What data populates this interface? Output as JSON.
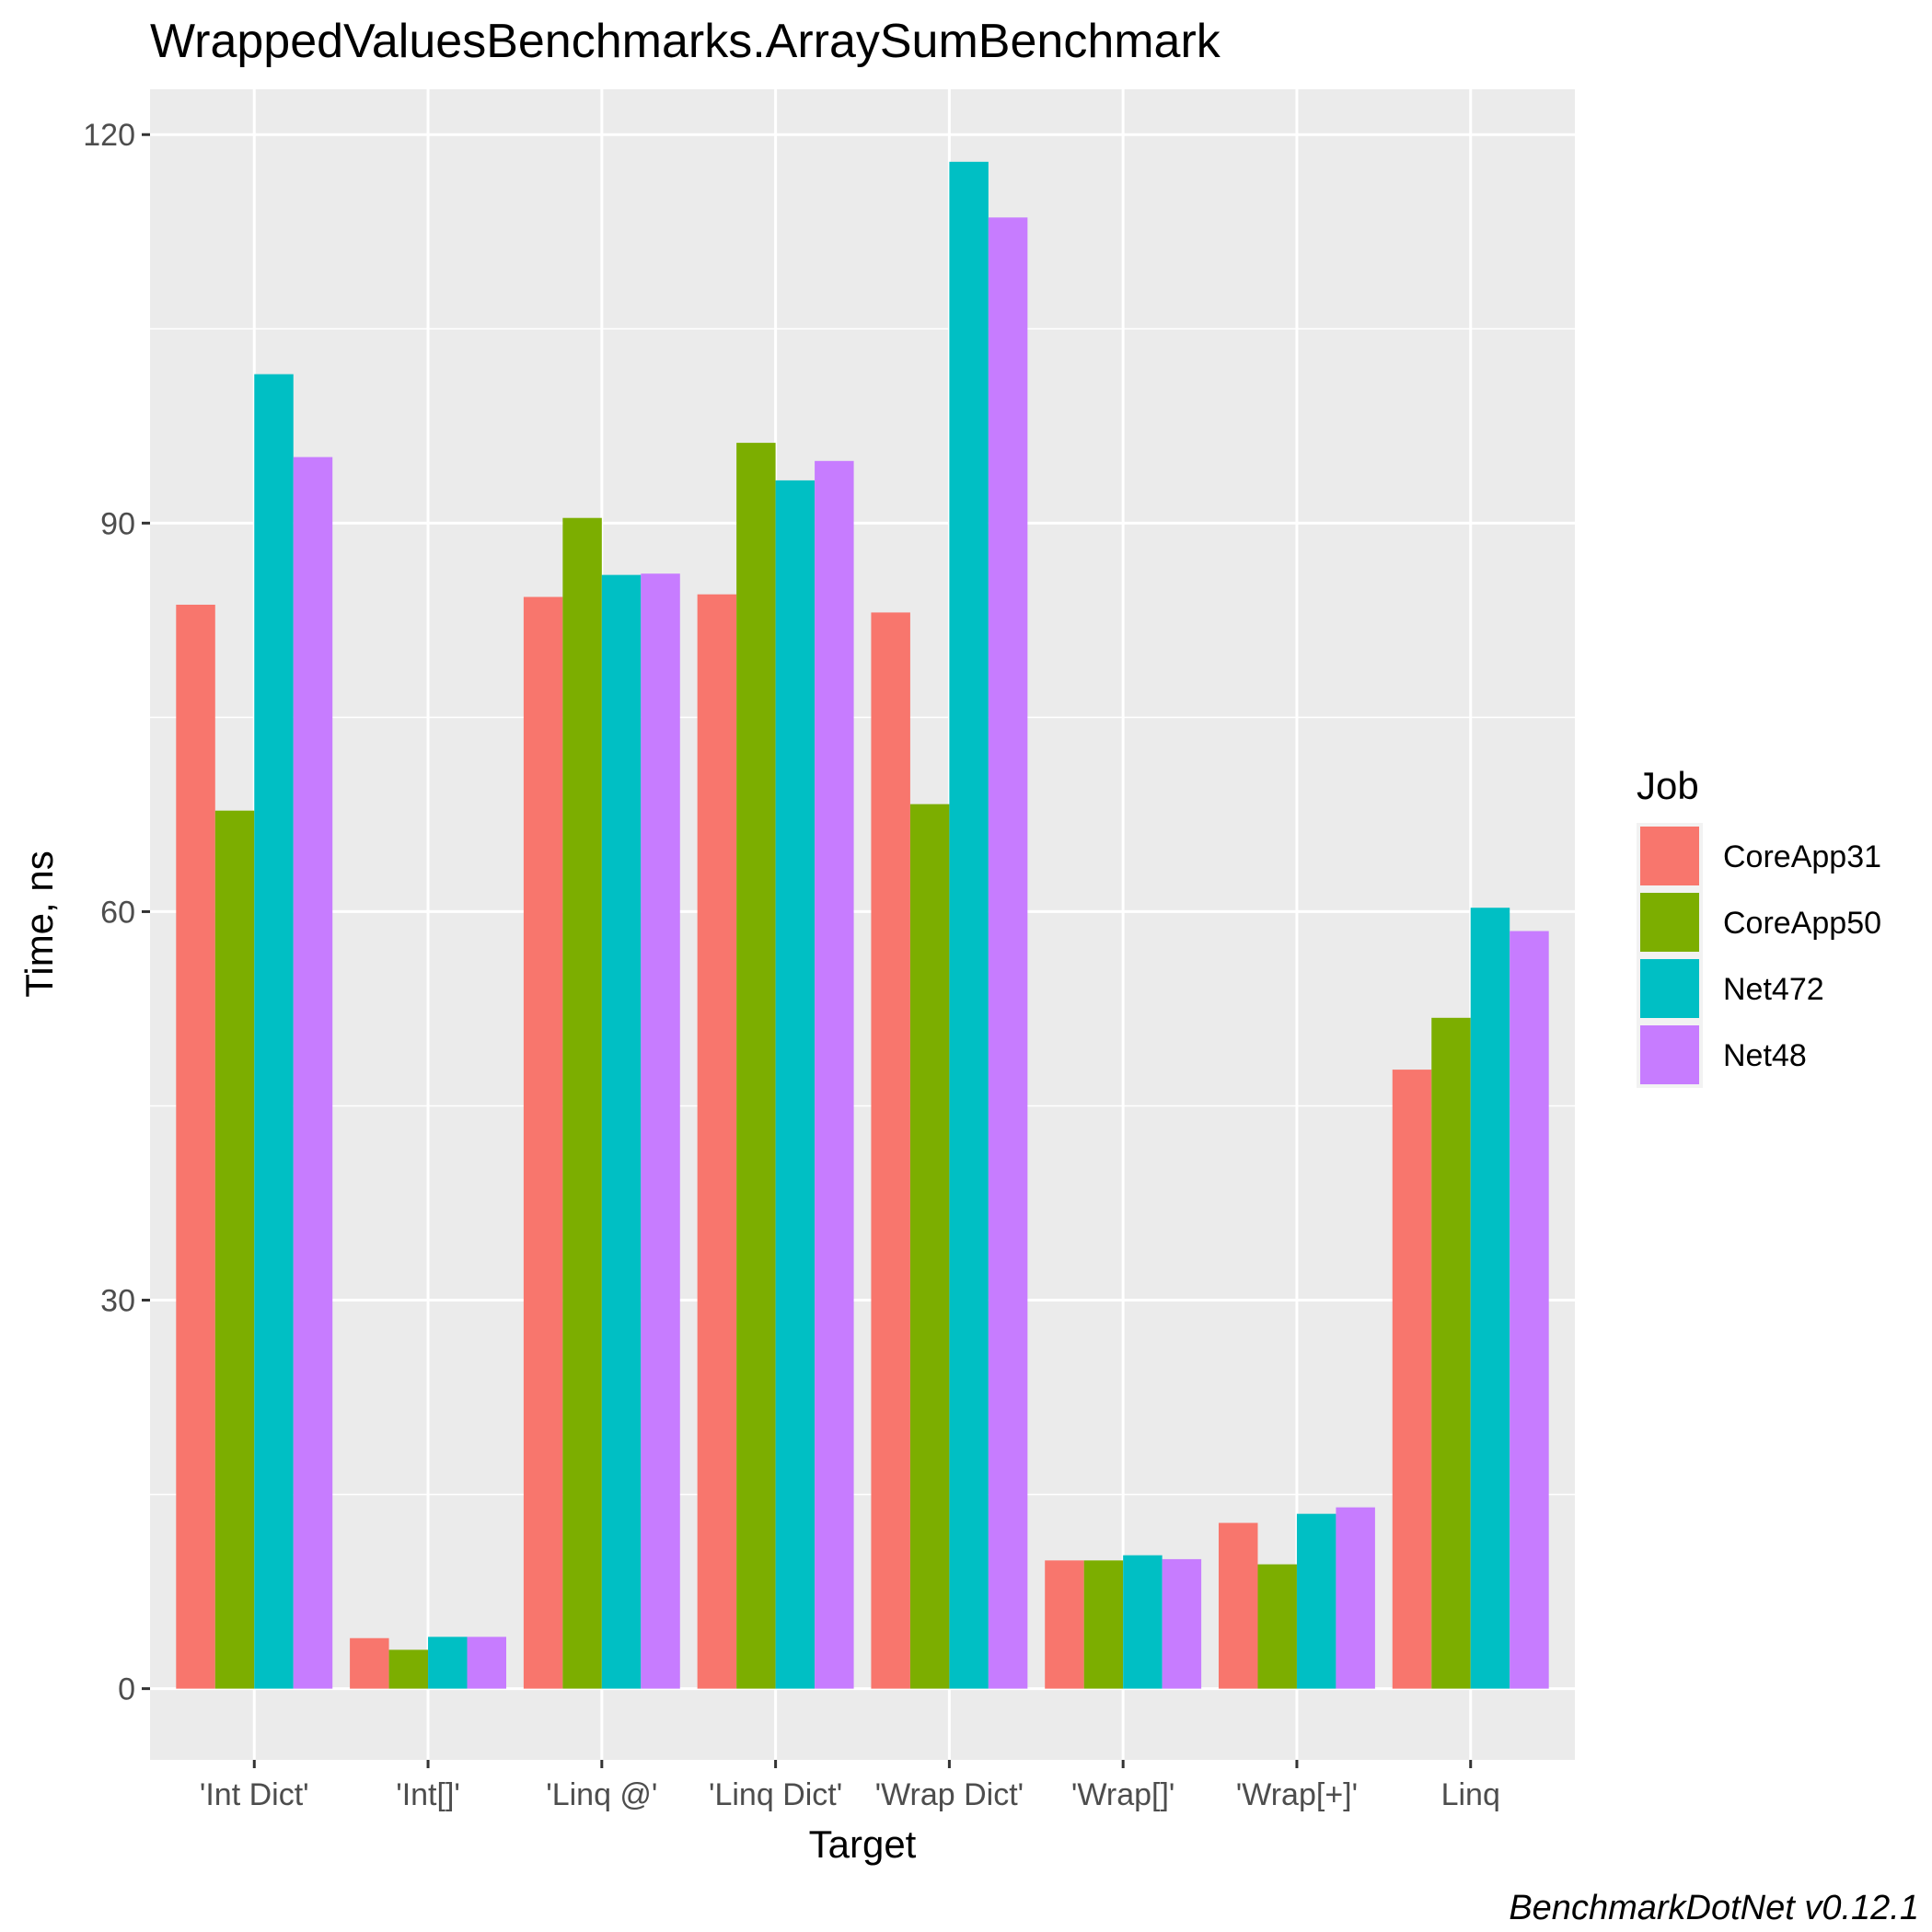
{
  "chart_data": {
    "type": "bar",
    "title": "WrappedValuesBenchmarks.ArraySumBenchmark",
    "xlabel": "Target",
    "ylabel": "Time, ns",
    "caption": "BenchmarkDotNet v0.12.1",
    "categories": [
      "'Int Dict'",
      "'Int[]'",
      "'Linq @'",
      "'Linq Dict'",
      "'Wrap Dict'",
      "'Wrap[]'",
      "'Wrap[+]'",
      "Linq"
    ],
    "yticks": [
      0,
      30,
      60,
      90,
      120
    ],
    "ylim": [
      -5.5,
      123.5
    ],
    "grid": true,
    "legend": {
      "title": "Job",
      "position": "right"
    },
    "series": [
      {
        "name": "CoreApp31",
        "color": "#F8766D",
        "values": [
          83.7,
          3.9,
          84.3,
          84.5,
          83.1,
          9.9,
          12.8,
          47.8
        ]
      },
      {
        "name": "CoreApp50",
        "color": "#7CAE00",
        "values": [
          67.8,
          3.0,
          90.4,
          96.2,
          68.3,
          9.9,
          9.6,
          51.8
        ]
      },
      {
        "name": "Net472",
        "color": "#00BFC4",
        "values": [
          101.5,
          4.0,
          86.0,
          93.3,
          117.9,
          10.3,
          13.5,
          60.3
        ]
      },
      {
        "name": "Net48",
        "color": "#C77CFF",
        "values": [
          95.1,
          4.0,
          86.1,
          94.8,
          113.6,
          10.0,
          14.0,
          58.5
        ]
      }
    ]
  }
}
